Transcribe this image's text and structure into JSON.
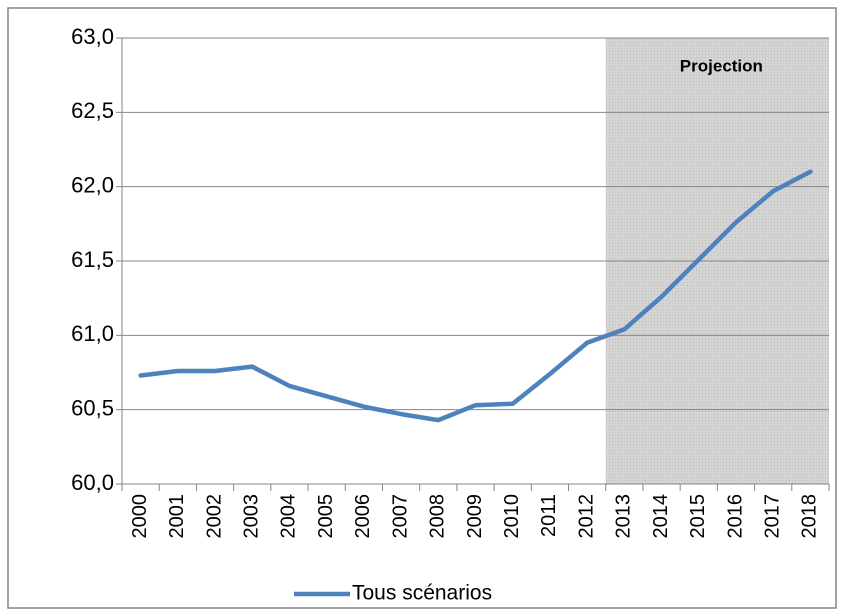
{
  "chart_data": {
    "type": "line",
    "categories": [
      "2000",
      "2001",
      "2002",
      "2003",
      "2004",
      "2005",
      "2006",
      "2007",
      "2008",
      "2009",
      "2010",
      "2011",
      "2012",
      "2013",
      "2014",
      "2015",
      "2016",
      "2017",
      "2018"
    ],
    "series": [
      {
        "name": "Tous scénarios",
        "color": "#4f81bd",
        "values": [
          60.73,
          60.76,
          60.76,
          60.79,
          60.66,
          60.59,
          60.52,
          60.47,
          60.43,
          60.53,
          60.54,
          60.74,
          60.95,
          61.04,
          61.26,
          61.51,
          61.76,
          61.97,
          62.1
        ]
      }
    ],
    "ylim": [
      60,
      63
    ],
    "yticks": [
      {
        "value": 60,
        "label": "60,0"
      },
      {
        "value": 60.5,
        "label": "60,5"
      },
      {
        "value": 61,
        "label": "61,0"
      },
      {
        "value": 61.5,
        "label": "61,5"
      },
      {
        "value": 62,
        "label": "62,0"
      },
      {
        "value": 62.5,
        "label": "62,5"
      },
      {
        "value": 63,
        "label": "63,0"
      }
    ],
    "grid": true,
    "annotations": [
      {
        "text": "Projection",
        "from": "2013"
      }
    ],
    "legend": "bottom"
  }
}
